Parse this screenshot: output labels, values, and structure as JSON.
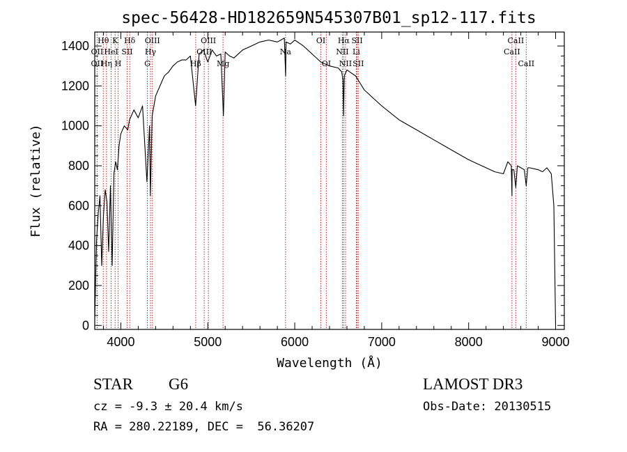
{
  "chart_data": {
    "type": "line",
    "title": "spec-56428-HD182659N545307B01_sp12-117.fits",
    "xlabel": "Wavelength (Å)",
    "ylabel": "Flux (relative)",
    "xlim": [
      3700,
      9100
    ],
    "ylim": [
      -20,
      1470
    ],
    "xticks": [
      4000,
      5000,
      6000,
      7000,
      8000,
      9000
    ],
    "yticks": [
      0,
      200,
      400,
      600,
      800,
      1000,
      1200,
      1400
    ],
    "series": [
      {
        "name": "flux",
        "x": [
          3700,
          3720,
          3740,
          3760,
          3780,
          3800,
          3820,
          3840,
          3860,
          3880,
          3900,
          3920,
          3940,
          3960,
          3980,
          4000,
          4040,
          4080,
          4100,
          4150,
          4200,
          4250,
          4300,
          4330,
          4340,
          4360,
          4400,
          4450,
          4500,
          4550,
          4600,
          4650,
          4700,
          4750,
          4800,
          4860,
          4900,
          4950,
          5000,
          5050,
          5100,
          5150,
          5180,
          5200,
          5250,
          5300,
          5400,
          5500,
          5600,
          5700,
          5800,
          5880,
          5895,
          5900,
          5950,
          6000,
          6100,
          6200,
          6300,
          6400,
          6500,
          6540,
          6555,
          6562,
          6570,
          6600,
          6700,
          6800,
          6900,
          7000,
          7200,
          7400,
          7600,
          7800,
          8000,
          8200,
          8300,
          8400,
          8450,
          8490,
          8498,
          8500,
          8520,
          8542,
          8560,
          8600,
          8640,
          8662,
          8680,
          8700,
          8800,
          8850,
          8900,
          8950,
          8980,
          9000
        ],
        "y": [
          30,
          420,
          560,
          650,
          300,
          550,
          680,
          620,
          370,
          700,
          300,
          760,
          820,
          780,
          900,
          960,
          1000,
          980,
          1030,
          1080,
          1040,
          1100,
          720,
          1000,
          650,
          1050,
          1150,
          1200,
          1250,
          1270,
          1300,
          1320,
          1330,
          1330,
          1350,
          1100,
          1360,
          1380,
          1320,
          1380,
          1350,
          1360,
          1050,
          1370,
          1350,
          1340,
          1380,
          1400,
          1420,
          1430,
          1420,
          1440,
          1250,
          1420,
          1410,
          1430,
          1400,
          1360,
          1320,
          1300,
          1290,
          1270,
          1230,
          1050,
          1250,
          1280,
          1250,
          1180,
          1140,
          1100,
          1030,
          980,
          930,
          880,
          830,
          790,
          770,
          760,
          820,
          800,
          650,
          780,
          780,
          690,
          800,
          790,
          780,
          700,
          790,
          790,
          780,
          770,
          790,
          760,
          600,
          0
        ]
      }
    ],
    "annotations": [
      {
        "label": "OII",
        "x": 3727,
        "row": 2
      },
      {
        "label": "OII",
        "x": 3727,
        "row": 3
      },
      {
        "label": "Hθ",
        "x": 3798,
        "row": 1
      },
      {
        "label": "Hη",
        "x": 3835,
        "row": 3
      },
      {
        "label": "HeI",
        "x": 3889,
        "row": 2
      },
      {
        "label": "K",
        "x": 3934,
        "row": 1
      },
      {
        "label": "H",
        "x": 3969,
        "row": 3
      },
      {
        "label": "Hδ",
        "x": 4102,
        "row": 1
      },
      {
        "label": "SII",
        "x": 4072,
        "row": 2
      },
      {
        "label": "OIII",
        "x": 4363,
        "row": 1
      },
      {
        "label": "Hγ",
        "x": 4341,
        "row": 2
      },
      {
        "label": "G",
        "x": 4305,
        "row": 3
      },
      {
        "label": "Hβ",
        "x": 4861,
        "row": 3
      },
      {
        "label": "OIII",
        "x": 5007,
        "row": 1
      },
      {
        "label": "OIII",
        "x": 4959,
        "row": 2
      },
      {
        "label": "Mg",
        "x": 5175,
        "row": 3
      },
      {
        "label": "Na",
        "x": 5894,
        "row": 2
      },
      {
        "label": "OI",
        "x": 6300,
        "row": 1
      },
      {
        "label": "OI",
        "x": 6363,
        "row": 3
      },
      {
        "label": "Hα",
        "x": 6563,
        "row": 1
      },
      {
        "label": "NII",
        "x": 6548,
        "row": 2
      },
      {
        "label": "NII",
        "x": 6584,
        "row": 3
      },
      {
        "label": "SII",
        "x": 6717,
        "row": 1
      },
      {
        "label": "Li",
        "x": 6708,
        "row": 2
      },
      {
        "label": "SII",
        "x": 6731,
        "row": 3
      },
      {
        "label": "CaII",
        "x": 8542,
        "row": 1
      },
      {
        "label": "CaII",
        "x": 8498,
        "row": 2
      },
      {
        "label": "CaII",
        "x": 8662,
        "row": 3
      }
    ],
    "line_markers": [
      3727,
      3798,
      3835,
      3889,
      3934,
      3969,
      4072,
      4102,
      4305,
      4341,
      4363,
      4861,
      4959,
      5007,
      5175,
      5894,
      6300,
      6363,
      6548,
      6563,
      6584,
      6708,
      6717,
      6731,
      8498,
      8542,
      8662
    ],
    "grid": false
  },
  "info": {
    "class": "STAR",
    "subclass": "G6",
    "survey": "LAMOST DR3",
    "redshift": "cz = -9.3 ± 20.4 km/s",
    "obs_date": "Obs-Date: 20130515",
    "coords": "RA = 280.22189, DEC =  56.36207"
  }
}
